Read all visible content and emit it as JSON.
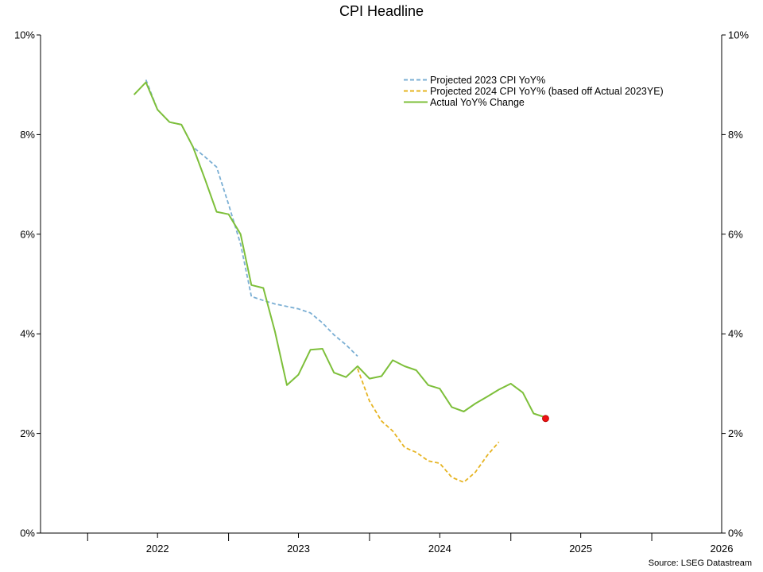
{
  "chart_data": {
    "type": "line",
    "title": "CPI Headline",
    "source": "Source: LSEG Datastream",
    "xlabel": "",
    "ylabel": "",
    "ylim": [
      0,
      10
    ],
    "xlim": [
      "2021-09-01",
      "2026-07-01"
    ],
    "yticks": [
      "0%",
      "2%",
      "4%",
      "6%",
      "8%",
      "10%"
    ],
    "ytick_values": [
      0,
      2,
      4,
      6,
      8,
      10
    ],
    "xtick_labels": [
      "2022",
      "2023",
      "2024",
      "2025",
      "2026"
    ],
    "xtick_label_dates": [
      "2022-07-01",
      "2023-07-01",
      "2024-07-01",
      "2025-07-01",
      "2026-07-01"
    ],
    "year_boundaries": [
      "2022-01-01",
      "2023-01-01",
      "2024-01-01",
      "2025-01-01",
      "2026-01-01"
    ],
    "grid": false,
    "dual_y_axis": true,
    "legend_position": "top-right",
    "series": [
      {
        "name": "Projected 2023 CPI YoY%",
        "color": "#7bafd4",
        "style": "dashed",
        "x": [
          "2022-06-01",
          "2022-07-01",
          "2022-08-01",
          "2022-09-01",
          "2022-10-01",
          "2022-11-01",
          "2022-12-01",
          "2023-01-01",
          "2023-02-01",
          "2023-03-01",
          "2023-04-01",
          "2023-05-01",
          "2023-06-01",
          "2023-07-01",
          "2023-08-01",
          "2023-09-01",
          "2023-10-01",
          "2023-11-01",
          "2023-12-01"
        ],
        "values": [
          9.1,
          8.5,
          8.25,
          8.2,
          7.75,
          7.55,
          7.35,
          6.6,
          5.8,
          4.75,
          4.67,
          4.6,
          4.55,
          4.5,
          4.42,
          4.22,
          3.98,
          3.78,
          3.55
        ]
      },
      {
        "name": "Projected 2024 CPI YoY% (based off Actual 2023YE)",
        "color": "#e6b422",
        "style": "dashed",
        "x": [
          "2023-12-01",
          "2024-01-01",
          "2024-02-01",
          "2024-03-01",
          "2024-04-01",
          "2024-05-01",
          "2024-06-01",
          "2024-07-01",
          "2024-08-01",
          "2024-09-01",
          "2024-10-01",
          "2024-11-01",
          "2024-12-01"
        ],
        "values": [
          3.3,
          2.65,
          2.25,
          2.05,
          1.72,
          1.62,
          1.45,
          1.4,
          1.12,
          1.02,
          1.22,
          1.56,
          1.83
        ]
      },
      {
        "name": "Actual YoY% Change",
        "color": "#7dbf3a",
        "style": "solid",
        "x": [
          "2022-05-01",
          "2022-06-01",
          "2022-07-01",
          "2022-08-01",
          "2022-09-01",
          "2022-10-01",
          "2022-11-01",
          "2022-12-01",
          "2023-01-01",
          "2023-02-01",
          "2023-03-01",
          "2023-04-01",
          "2023-05-01",
          "2023-06-01",
          "2023-07-01",
          "2023-08-01",
          "2023-09-01",
          "2023-10-01",
          "2023-11-01",
          "2023-12-01",
          "2024-01-01",
          "2024-02-01",
          "2024-03-01",
          "2024-04-01",
          "2024-05-01",
          "2024-06-01",
          "2024-07-01",
          "2024-08-01",
          "2024-09-01",
          "2024-10-01",
          "2024-11-01",
          "2024-12-01",
          "2025-01-01",
          "2025-02-01",
          "2025-03-01",
          "2025-04-01"
        ],
        "values": [
          8.8,
          9.05,
          8.5,
          8.25,
          8.2,
          7.75,
          7.1,
          6.45,
          6.4,
          6.0,
          4.98,
          4.92,
          4.05,
          2.97,
          3.18,
          3.68,
          3.7,
          3.22,
          3.13,
          3.35,
          3.1,
          3.15,
          3.47,
          3.35,
          3.27,
          2.97,
          2.9,
          2.53,
          2.44,
          2.6,
          2.74,
          2.88,
          3.0,
          2.82,
          2.4,
          2.32
        ]
      }
    ],
    "marker": {
      "x": "2025-04-01",
      "value": 2.3,
      "color": "#ee1111"
    }
  }
}
